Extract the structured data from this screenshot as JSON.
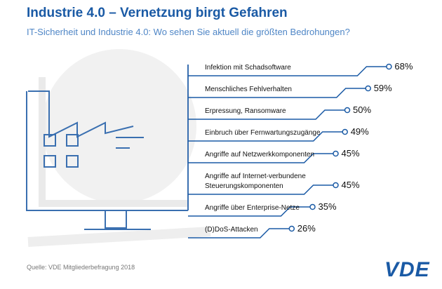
{
  "chart_data": {
    "type": "bar",
    "title": "Industrie 4.0 – Vernetzung birgt Gefahren",
    "subtitle": "IT-Sicherheit und Industrie 4.0: Wo sehen Sie aktuell die größten Bedrohungen?",
    "categories": [
      "Infektion mit Schadsoftware",
      "Menschliches Fehlverhalten",
      "Erpressung, Ransomware",
      "Einbruch über Fernwartungszugänge",
      "Angriffe auf Netzwerkkomponenten",
      "Angriffe auf Internet-verbundene Steuerungskomponenten",
      "Angriffe über Enterprise-Netze",
      "(D)DoS-Attacken"
    ],
    "values": [
      68,
      59,
      50,
      49,
      45,
      45,
      35,
      26
    ],
    "value_labels": [
      "68%",
      "59%",
      "50%",
      "49%",
      "45%",
      "45%",
      "35%",
      "26%"
    ],
    "color": "#1a5aa5",
    "source": "Quelle: VDE Mitgliederbefragung 2018",
    "logo": "VDE"
  }
}
